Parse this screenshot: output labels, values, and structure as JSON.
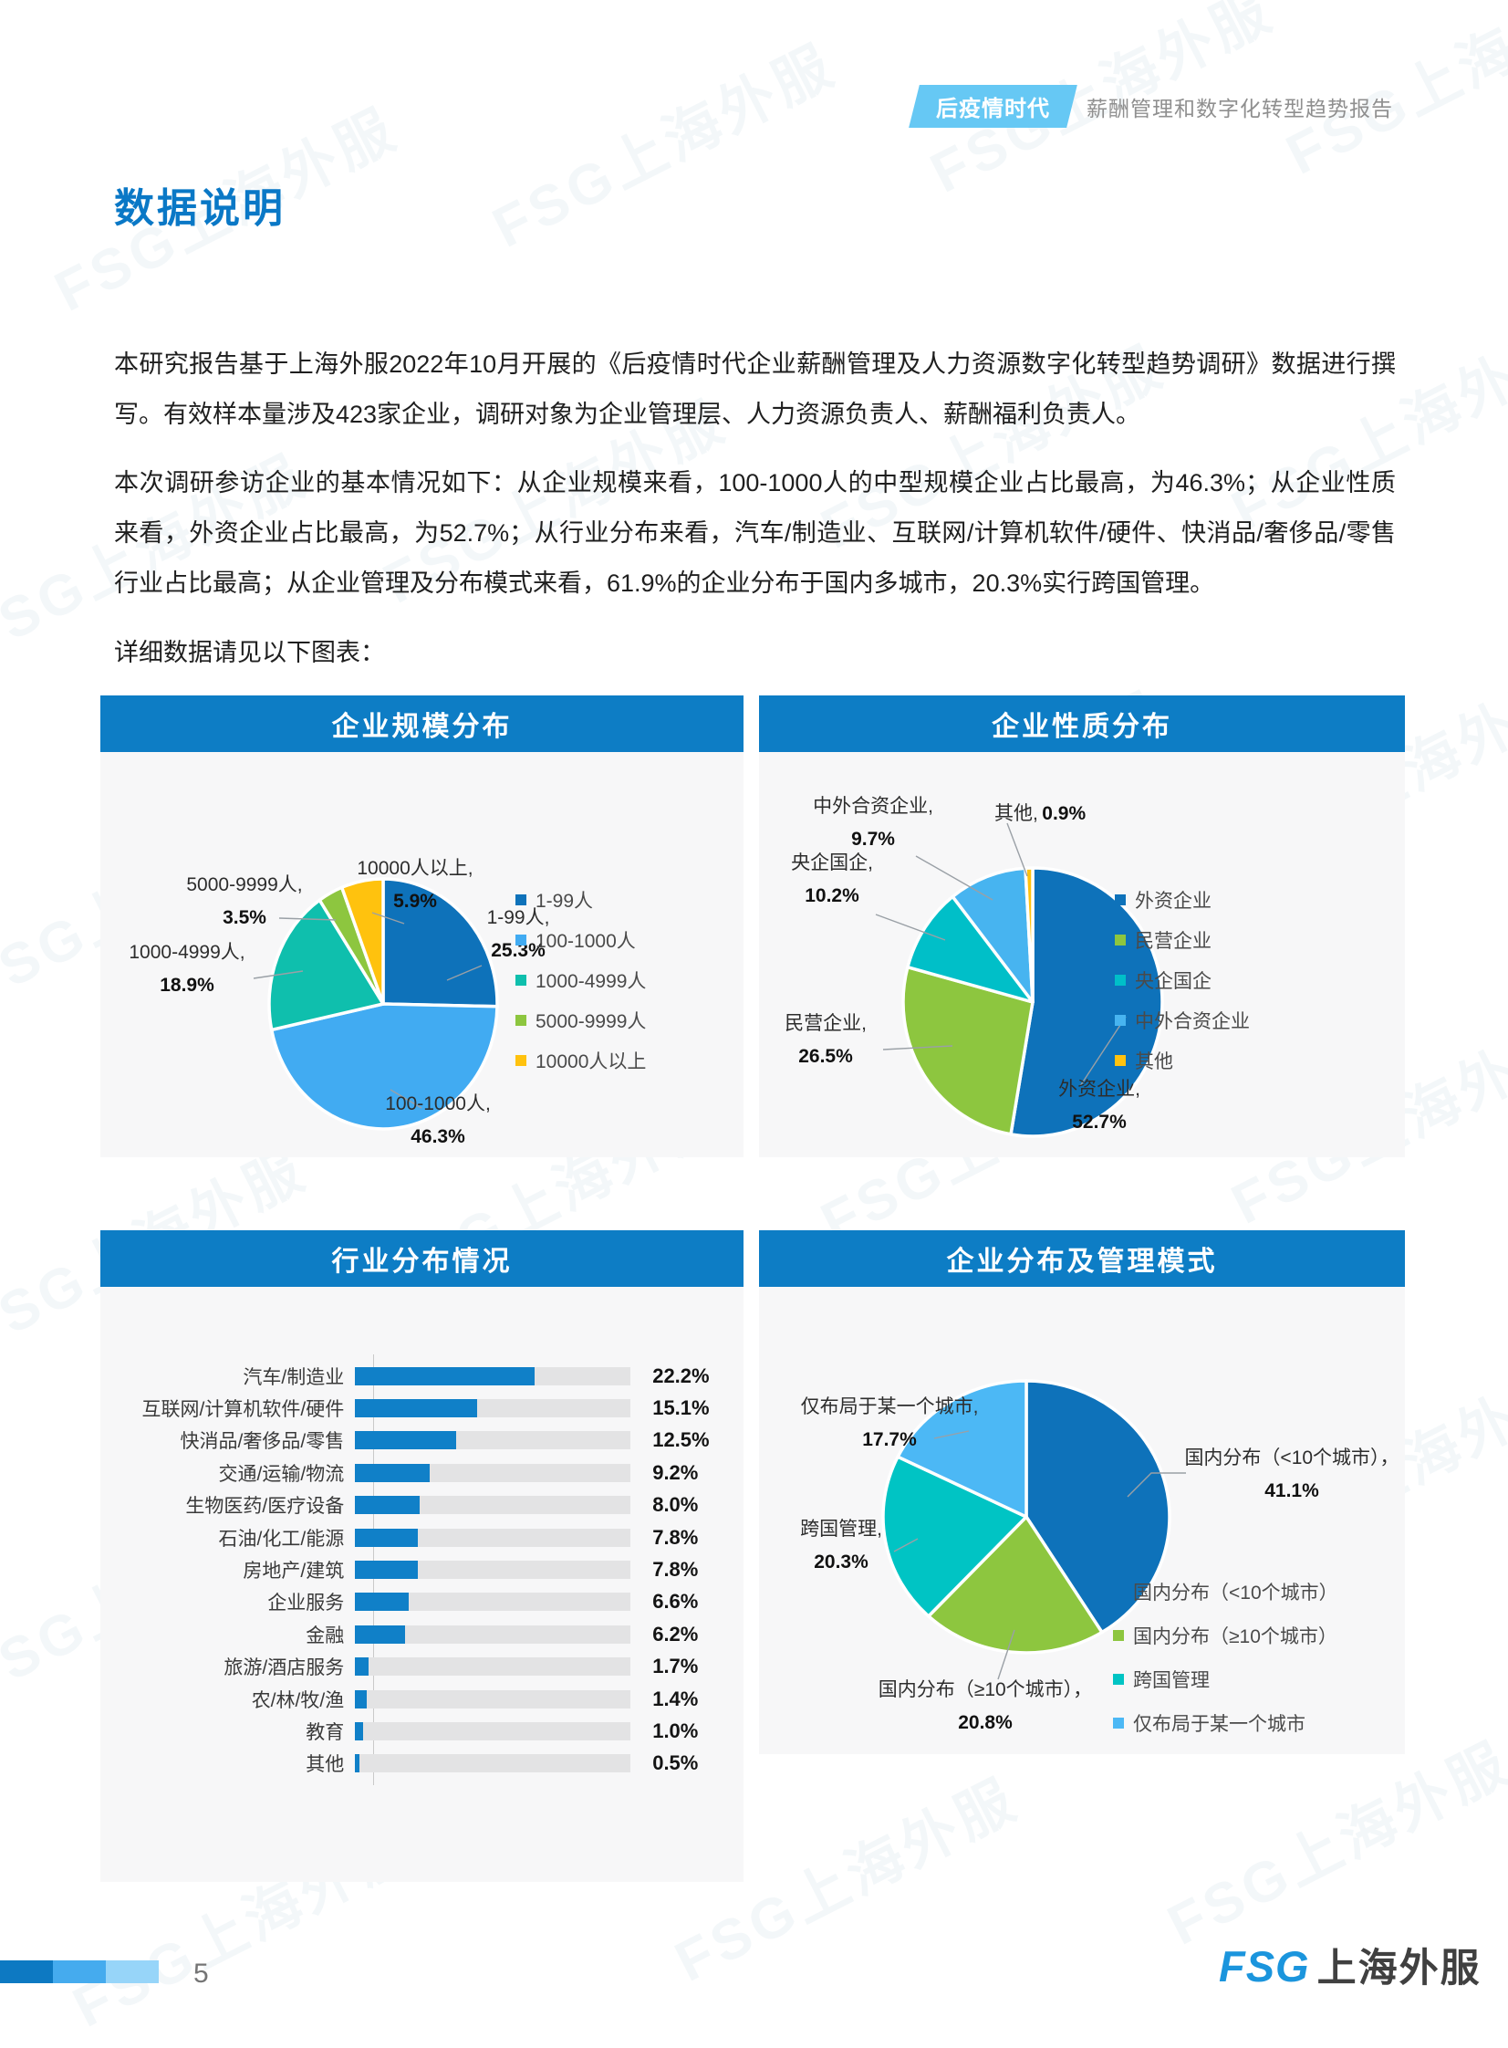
{
  "page": {
    "header": {
      "badge": "后疫情时代",
      "report_title": "薪酬管理和数字化转型趋势报告"
    },
    "title": "数据说明",
    "paragraph1": "本研究报告基于上海外服2022年10月开展的《后疫情时代企业薪酬管理及人力资源数字化转型趋势调研》数据进行撰写。有效样本量涉及423家企业，调研对象为企业管理层、人力资源负责人、薪酬福利负责人。",
    "paragraph2": "本次调研参访企业的基本情况如下：从企业规模来看，100-1000人的中型规模企业占比最高，为46.3%；从企业性质来看，外资企业占比最高，为52.7%；从行业分布来看，汽车/制造业、互联网/计算机软件/硬件、快消品/奢侈品/零售行业占比最高；从企业管理及分布模式来看，61.9%的企业分布于国内多城市，20.3%实行跨国管理。",
    "charts_intro": "详细数据请见以下图表：",
    "watermark": "FSG上海外服",
    "footer": {
      "page_number": "5",
      "logo_fsg": "FSG",
      "logo_cn": "上海外服"
    }
  },
  "colors": {
    "accent_blue": "#0d7dc5",
    "badge_blue": "#66c8f4",
    "title_blue": "#0a78c6",
    "pie_dark_blue": "#0e72ba",
    "pie_light_blue": "#41abf2",
    "pie_teal": "#0fbfad",
    "pie_green": "#8dc63f",
    "pie_amber": "#ffc20e",
    "bar_blue": "#1080c8",
    "bar_track_gray": "#e3e3e4"
  },
  "chart_data": [
    {
      "id": "company-size",
      "type": "pie",
      "title": "企业规模分布",
      "legend_position": "right",
      "series": [
        {
          "name": "1-99人",
          "value": 25.3,
          "color": "#0e72ba",
          "callout_name": "1-99人,",
          "callout_value": "25.3%"
        },
        {
          "name": "100-1000人",
          "value": 46.3,
          "color": "#41abf2",
          "callout_name": "100-1000人,",
          "callout_value": "46.3%"
        },
        {
          "name": "1000-4999人",
          "value": 18.9,
          "color": "#0fbfad",
          "callout_name": "1000-4999人,",
          "callout_value": "18.9%"
        },
        {
          "name": "5000-9999人",
          "value": 3.5,
          "color": "#8dc63f",
          "callout_name": "5000-9999人,",
          "callout_value": "3.5%"
        },
        {
          "name": "10000人以上",
          "value": 5.9,
          "color": "#ffc20e",
          "callout_name": "10000人以上,",
          "callout_value": "5.9%"
        }
      ]
    },
    {
      "id": "company-nature",
      "type": "pie",
      "title": "企业性质分布",
      "legend_position": "right",
      "series": [
        {
          "name": "外资企业",
          "value": 52.7,
          "color": "#0e72ba",
          "callout_name": "外资企业,",
          "callout_value": "52.7%"
        },
        {
          "name": "民营企业",
          "value": 26.5,
          "color": "#8dc63f",
          "callout_name": "民营企业,",
          "callout_value": "26.5%"
        },
        {
          "name": "央企国企",
          "value": 10.2,
          "color": "#00bfc8",
          "callout_name": "央企国企,",
          "callout_value": "10.2%"
        },
        {
          "name": "中外合资企业",
          "value": 9.7,
          "color": "#47b4f0",
          "callout_name": "中外合资企业,",
          "callout_value": "9.7%"
        },
        {
          "name": "其他",
          "value": 0.9,
          "color": "#ffc20e",
          "callout_name": "其他,",
          "callout_value": "0.9%"
        }
      ]
    },
    {
      "id": "industry-distribution",
      "type": "bar",
      "title": "行业分布情况",
      "orientation": "horizontal",
      "categories": [
        "汽车/制造业",
        "互联网/计算机软件/硬件",
        "快消品/奢侈品/零售",
        "交通/运输/物流",
        "生物医药/医疗设备",
        "石油/化工/能源",
        "房地产/建筑",
        "企业服务",
        "金融",
        "旅游/酒店服务",
        "农/林/牧/渔",
        "教育",
        "其他"
      ],
      "values": [
        22.2,
        15.1,
        12.5,
        9.2,
        8.0,
        7.8,
        7.8,
        6.6,
        6.2,
        1.7,
        1.4,
        1.0,
        0.5
      ],
      "value_labels": [
        "22.2%",
        "15.1%",
        "12.5%",
        "9.2%",
        "8.0%",
        "7.8%",
        "7.8%",
        "6.6%",
        "6.2%",
        "1.7%",
        "1.4%",
        "1.0%",
        "0.5%"
      ],
      "xlim": [
        0,
        34
      ],
      "bar_color": "#1080c8",
      "track_color": "#e3e3e4"
    },
    {
      "id": "distribution-management",
      "type": "pie",
      "title": "企业分布及管理模式",
      "legend_position": "right",
      "series": [
        {
          "name": "国内分布（<10个城市）",
          "value": 41.1,
          "color": "#0e72ba",
          "callout_name": "国内分布（<10个城市），",
          "callout_value": "41.1%"
        },
        {
          "name": "国内分布（≥10个城市）",
          "value": 20.8,
          "color": "#8dc63f",
          "callout_name": "国内分布（≥10个城市），",
          "callout_value": "20.8%"
        },
        {
          "name": "跨国管理",
          "value": 20.3,
          "color": "#00c4c4",
          "callout_name": "跨国管理,",
          "callout_value": "20.3%"
        },
        {
          "name": "仅布局于某一个城市",
          "value": 17.7,
          "color": "#4cb8f5",
          "callout_name": "仅布局于某一个城市,",
          "callout_value": "17.7%"
        }
      ]
    }
  ]
}
